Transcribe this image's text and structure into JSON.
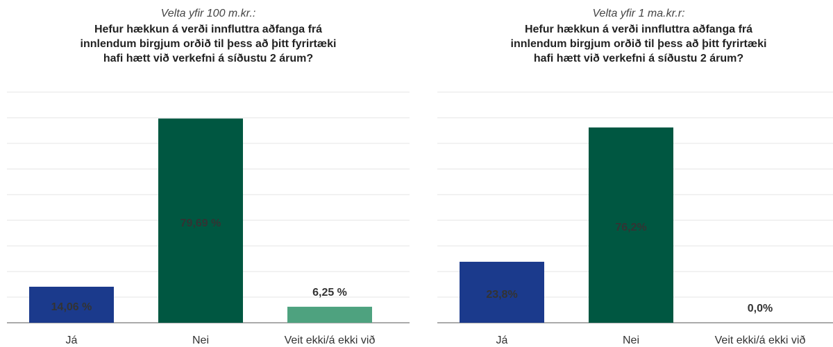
{
  "chart_data": [
    {
      "type": "bar",
      "subtitle": "Velta yfir 100 m.kr.:",
      "title": [
        "Hefur hækkun á verði innfluttra aðfanga frá",
        "innlendum birgjum orðið til þess að þitt fyrirtæki",
        "hafi hætt við verkefni á síðustu 2 árum?"
      ],
      "categories": [
        "Já",
        "Nei",
        "Veit ekki/á ekki við"
      ],
      "values": [
        14.06,
        79.69,
        6.25
      ],
      "value_labels": [
        "14,06 %",
        "79,69 %",
        "6,25 %"
      ],
      "colors": [
        "#1b3a8c",
        "#005741",
        "#4ea27f"
      ],
      "ylim": [
        0,
        90
      ],
      "yticks": [
        0,
        10,
        20,
        30,
        40,
        50,
        60,
        70,
        80,
        90
      ],
      "grid": true
    },
    {
      "type": "bar",
      "subtitle": "Velta yfir 1 ma.kr.r:",
      "title": [
        "Hefur hækkun á verði innfluttra aðfanga frá",
        "innlendum birgjum orðið til þess að þitt fyrirtæki",
        "hafi hætt við verkefni á síðustu 2 árum?"
      ],
      "categories": [
        "Já",
        "Nei",
        "Veit ekki/á ekki við"
      ],
      "values": [
        23.8,
        76.2,
        0.0
      ],
      "value_labels": [
        "23,8%",
        "76,2%",
        "0,0%"
      ],
      "colors": [
        "#1b3a8c",
        "#005741",
        "#4ea27f"
      ],
      "ylim": [
        0,
        90
      ],
      "yticks": [
        0,
        10,
        20,
        30,
        40,
        50,
        60,
        70,
        80,
        90
      ],
      "grid": true
    }
  ]
}
